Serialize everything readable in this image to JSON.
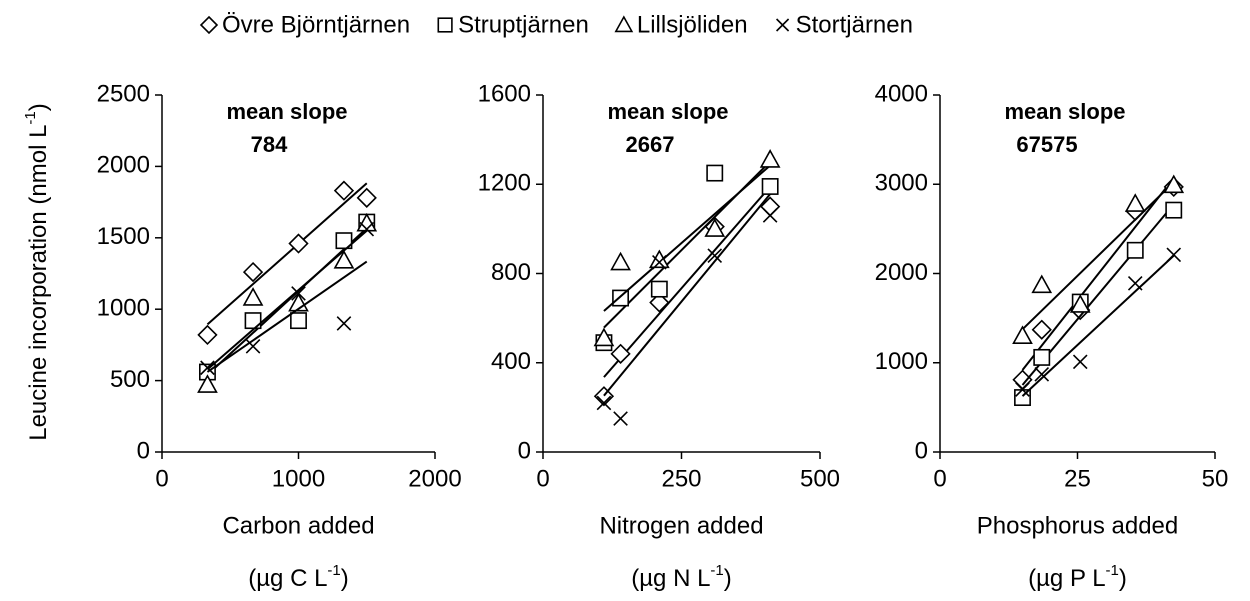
{
  "legend": "top",
  "ylabel": {
    "text": "Leucine incorporation (nmol L",
    "sup": "-1",
    "end": ")"
  },
  "chart_data": [
    {
      "type": "scatter",
      "title": "mean slope",
      "subtitle": "784",
      "xlabel": "Carbon added",
      "xunit": {
        "text": "(µg C L",
        "sup": "-1",
        "end": ")"
      },
      "xlim": [
        0,
        2000
      ],
      "xticks": [
        0,
        1000,
        2000
      ],
      "ylim": [
        0,
        2500
      ],
      "yticks": [
        0,
        500,
        1000,
        1500,
        2000,
        2500
      ],
      "x": [
        333,
        667,
        1000,
        1333,
        1500
      ],
      "fit": true,
      "series": [
        {
          "name": "Övre Björntjärnen",
          "marker": "diamond",
          "color": "#000000",
          "values": [
            820,
            1260,
            1460,
            1830,
            1780
          ]
        },
        {
          "name": "Struptjärnen",
          "marker": "square",
          "color": "#000000",
          "values": [
            560,
            920,
            920,
            1480,
            1610
          ]
        },
        {
          "name": "Lillsjöliden",
          "marker": "triangle",
          "color": "#000000",
          "values": [
            470,
            1080,
            1040,
            1340,
            1600
          ]
        },
        {
          "name": "Stortjärnen",
          "marker": "x",
          "color": "#000000",
          "values": [
            590,
            740,
            1110,
            900,
            1560
          ]
        }
      ]
    },
    {
      "type": "scatter",
      "title": "mean slope",
      "subtitle": "2667",
      "xlabel": "Nitrogen added",
      "xunit": {
        "text": "(µg N L",
        "sup": "-1",
        "end": ")"
      },
      "xlim": [
        0,
        500
      ],
      "xticks": [
        0,
        250,
        500
      ],
      "ylim": [
        0,
        1600
      ],
      "yticks": [
        0,
        400,
        800,
        1200,
        1600
      ],
      "x": [
        110,
        140,
        210,
        310,
        410
      ],
      "fit": true,
      "series": [
        {
          "name": "Övre Björntjärnen",
          "marker": "diamond",
          "color": "#000000",
          "values": [
            250,
            440,
            670,
            1010,
            1100
          ]
        },
        {
          "name": "Struptjärnen",
          "marker": "square",
          "color": "#000000",
          "values": [
            490,
            690,
            730,
            1250,
            1190
          ]
        },
        {
          "name": "Lillsjöliden",
          "marker": "triangle",
          "color": "#000000",
          "values": [
            510,
            850,
            860,
            1000,
            1310
          ]
        },
        {
          "name": "Stortjärnen",
          "marker": "x",
          "color": "#000000",
          "values": [
            220,
            150,
            850,
            880,
            1060
          ]
        }
      ]
    },
    {
      "type": "scatter",
      "title": "mean slope",
      "subtitle": "67575",
      "xlabel": "Phosphorus added",
      "xunit": {
        "text": "(µg P L",
        "sup": "-1",
        "end": ")"
      },
      "xlim": [
        0,
        50
      ],
      "xticks": [
        0,
        25,
        50
      ],
      "ylim": [
        0,
        4000
      ],
      "yticks": [
        0,
        1000,
        2000,
        3000,
        4000
      ],
      "x": [
        15,
        18.5,
        25.5,
        35.5,
        42.5
      ],
      "fit": true,
      "series": [
        {
          "name": "Övre Björntjärnen",
          "marker": "diamond",
          "color": "#000000",
          "values": [
            810,
            1370,
            1590,
            2700,
            2970
          ]
        },
        {
          "name": "Struptjärnen",
          "marker": "square",
          "color": "#000000",
          "values": [
            610,
            1060,
            1680,
            2260,
            2710
          ]
        },
        {
          "name": "Lillsjöliden",
          "marker": "triangle",
          "color": "#000000",
          "values": [
            1300,
            1870,
            1650,
            2780,
            2990
          ]
        },
        {
          "name": "Stortjärnen",
          "marker": "x",
          "color": "#000000",
          "values": [
            700,
            870,
            1010,
            1890,
            2210
          ]
        }
      ]
    }
  ]
}
